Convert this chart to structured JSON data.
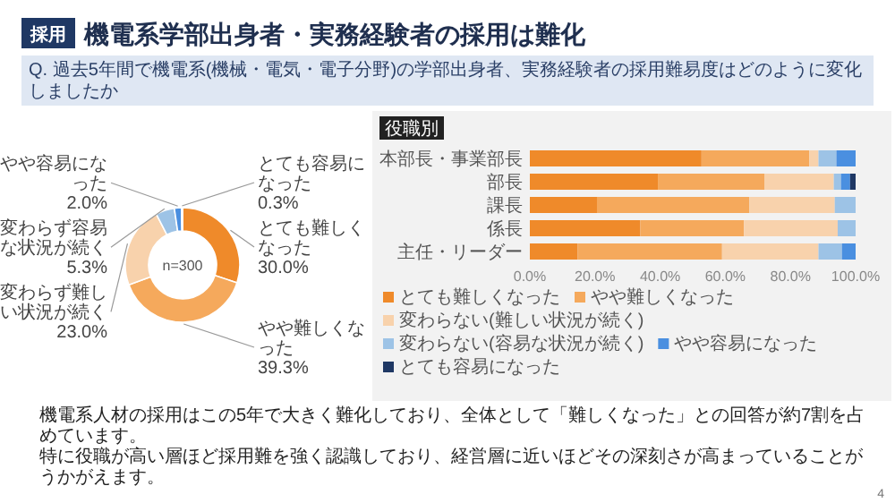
{
  "chart_data": [
    {
      "type": "donut",
      "title": "機電系学部出身者・実務経験者の採用は難化",
      "subtitle": "Q. 過去5年間で機電系(機械・電気・電子分野)の学部出身者、実務経験者の採用難易度はどのように変化しましたか",
      "categories": [
        "とても難しくなった",
        "やや難しくなった",
        "変わらず難しい状況が続く",
        "変わらず容易な状況が続く",
        "やや容易になった",
        "とても容易になった"
      ],
      "values": [
        30.0,
        39.3,
        23.0,
        5.3,
        2.0,
        0.3
      ],
      "colors": [
        "#ef8a2a",
        "#f5a95c",
        "#f8d2ac",
        "#9dc3e6",
        "#4a8fe0",
        "#1f3864"
      ],
      "value_labels": [
        "30.0%",
        "39.3%",
        "23.0%",
        "5.3%",
        "2.0%",
        "0.3%"
      ],
      "annotations": [
        "採用",
        "n=300",
        "機電系人材の採用はこの5年で大きく難化しており、全体として「難しくなった」との回答が約7割を占めています。",
        "特に役職が高い層ほど採用難を強く認識しており、経営層に近いほどその深刻さが高まっていることがうかがえます。",
        "4"
      ]
    },
    {
      "type": "bar",
      "orientation": "horizontal",
      "stacked": true,
      "title": "役職別",
      "categories": [
        "本部長・事業部長",
        "部長",
        "課長",
        "係長",
        "主任・リーダー"
      ],
      "series": [
        {
          "name": "とても難しくなった",
          "color": "#ef8a2a",
          "values": [
            52.7,
            39.3,
            20.6,
            33.9,
            14.7
          ]
        },
        {
          "name": "やや難しくなった",
          "color": "#f5a95c",
          "values": [
            33.1,
            32.8,
            46.8,
            31.8,
            44.3
          ]
        },
        {
          "name": "変わらない(難しい状況が続く)",
          "color": "#f8d2ac",
          "values": [
            2.8,
            21.2,
            26.2,
            28.8,
            29.6
          ]
        },
        {
          "name": "変わらない(容易な状況が続く)",
          "color": "#9dc3e6",
          "values": [
            5.5,
            2.2,
            6.4,
            5.5,
            7.2
          ]
        },
        {
          "name": "やや容易になった",
          "color": "#4a8fe0",
          "values": [
            5.9,
            2.8,
            null,
            null,
            4.2
          ]
        },
        {
          "name": "とても容易になった",
          "color": "#1f3864",
          "values": [
            null,
            1.7,
            null,
            null,
            null
          ]
        }
      ],
      "xlim": [
        0,
        100
      ],
      "xticks": [
        {
          "value": 0,
          "label": "0.0%"
        },
        {
          "value": 20,
          "label": "20.0%"
        },
        {
          "value": 40,
          "label": "40.0%"
        },
        {
          "value": 60,
          "label": "60.0%"
        },
        {
          "value": 80,
          "label": "80.0%"
        },
        {
          "value": 100,
          "label": "100.0%"
        }
      ],
      "legend": "bottom"
    }
  ]
}
